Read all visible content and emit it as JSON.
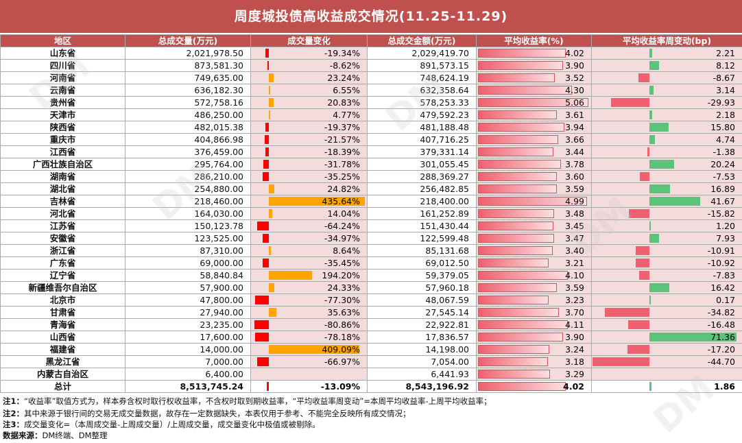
{
  "title": "周度城投债高收益成交情况(11.25-11.29)",
  "headers": [
    "地区",
    "总成交量(万元)",
    "成交量变化",
    "总成交金额(万元)",
    "平均收益率(%)",
    "平均收益率周变动(bp)"
  ],
  "colors": {
    "accent": "#c0504d",
    "volume_up": "#ffa500",
    "volume_down": "#ff0000",
    "yield_bar": "#f0868a",
    "bp_up": "#5cc47a",
    "bp_down": "#f06070",
    "row_bg": "#f5dcdc"
  },
  "rows": [
    {
      "region": "山东省",
      "volume": "2,021,978.50",
      "change": "-19.34%",
      "change_val": -19.34,
      "amount": "2,029,419.70",
      "yield": "4.02",
      "yield_val": 4.02,
      "bp": "2.21",
      "bp_val": 2.21
    },
    {
      "region": "四川省",
      "volume": "873,581.30",
      "change": "-8.62%",
      "change_val": -8.62,
      "amount": "891,573.15",
      "yield": "3.90",
      "yield_val": 3.9,
      "bp": "8.12",
      "bp_val": 8.12
    },
    {
      "region": "河南省",
      "volume": "749,635.00",
      "change": "23.24%",
      "change_val": 23.24,
      "amount": "748,624.19",
      "yield": "3.52",
      "yield_val": 3.52,
      "bp": "-8.67",
      "bp_val": -8.67
    },
    {
      "region": "云南省",
      "volume": "636,182.30",
      "change": "6.55%",
      "change_val": 6.55,
      "amount": "632,358.64",
      "yield": "4.30",
      "yield_val": 4.3,
      "bp": "3.14",
      "bp_val": 3.14
    },
    {
      "region": "贵州省",
      "volume": "572,758.16",
      "change": "20.83%",
      "change_val": 20.83,
      "amount": "578,253.33",
      "yield": "5.06",
      "yield_val": 5.06,
      "bp": "-29.93",
      "bp_val": -29.93
    },
    {
      "region": "天津市",
      "volume": "486,250.00",
      "change": "4.77%",
      "change_val": 4.77,
      "amount": "479,592.23",
      "yield": "3.61",
      "yield_val": 3.61,
      "bp": "2.18",
      "bp_val": 2.18
    },
    {
      "region": "陕西省",
      "volume": "482,015.38",
      "change": "-19.37%",
      "change_val": -19.37,
      "amount": "481,188.48",
      "yield": "3.94",
      "yield_val": 3.94,
      "bp": "15.80",
      "bp_val": 15.8
    },
    {
      "region": "重庆市",
      "volume": "404,866.98",
      "change": "-21.57%",
      "change_val": -21.57,
      "amount": "407,716.25",
      "yield": "3.66",
      "yield_val": 3.66,
      "bp": "4.74",
      "bp_val": 4.74
    },
    {
      "region": "江西省",
      "volume": "376,459.00",
      "change": "-18.39%",
      "change_val": -18.39,
      "amount": "379,331.14",
      "yield": "3.44",
      "yield_val": 3.44,
      "bp": "-1.38",
      "bp_val": -1.38
    },
    {
      "region": "广西壮族自治区",
      "volume": "295,764.00",
      "change": "-31.78%",
      "change_val": -31.78,
      "amount": "301,055.45",
      "yield": "3.78",
      "yield_val": 3.78,
      "bp": "20.24",
      "bp_val": 20.24
    },
    {
      "region": "湖南省",
      "volume": "286,210.00",
      "change": "-35.25%",
      "change_val": -35.25,
      "amount": "288,369.27",
      "yield": "3.60",
      "yield_val": 3.6,
      "bp": "-7.53",
      "bp_val": -7.53
    },
    {
      "region": "湖北省",
      "volume": "254,880.00",
      "change": "24.82%",
      "change_val": 24.82,
      "amount": "256,482.85",
      "yield": "3.59",
      "yield_val": 3.59,
      "bp": "16.89",
      "bp_val": 16.89
    },
    {
      "region": "吉林省",
      "volume": "218,460.00",
      "change": "435.64%",
      "change_val": 435.64,
      "amount": "218,400.00",
      "yield": "4.99",
      "yield_val": 4.99,
      "bp": "41.67",
      "bp_val": 41.67
    },
    {
      "region": "河北省",
      "volume": "164,030.00",
      "change": "14.04%",
      "change_val": 14.04,
      "amount": "161,252.89",
      "yield": "3.48",
      "yield_val": 3.48,
      "bp": "-15.82",
      "bp_val": -15.82
    },
    {
      "region": "江苏省",
      "volume": "150,123.78",
      "change": "-64.24%",
      "change_val": -64.24,
      "amount": "151,430.44",
      "yield": "3.45",
      "yield_val": 3.45,
      "bp": "1.20",
      "bp_val": 1.2
    },
    {
      "region": "安徽省",
      "volume": "123,525.00",
      "change": "-34.97%",
      "change_val": -34.97,
      "amount": "122,599.48",
      "yield": "3.47",
      "yield_val": 3.47,
      "bp": "7.93",
      "bp_val": 7.93
    },
    {
      "region": "浙江省",
      "volume": "87,310.00",
      "change": "8.64%",
      "change_val": 8.64,
      "amount": "85,131.68",
      "yield": "3.40",
      "yield_val": 3.4,
      "bp": "-10.91",
      "bp_val": -10.91
    },
    {
      "region": "广东省",
      "volume": "69,000.00",
      "change": "-35.45%",
      "change_val": -35.45,
      "amount": "69,012.50",
      "yield": "3.21",
      "yield_val": 3.21,
      "bp": "-10.92",
      "bp_val": -10.92
    },
    {
      "region": "辽宁省",
      "volume": "58,840.84",
      "change": "194.20%",
      "change_val": 194.2,
      "amount": "59,379.05",
      "yield": "4.10",
      "yield_val": 4.1,
      "bp": "-7.83",
      "bp_val": -7.83
    },
    {
      "region": "新疆维吾尔自治区",
      "volume": "57,900.00",
      "change": "24.33%",
      "change_val": 24.33,
      "amount": "57,960.18",
      "yield": "3.59",
      "yield_val": 3.59,
      "bp": "16.42",
      "bp_val": 16.42
    },
    {
      "region": "北京市",
      "volume": "47,800.00",
      "change": "-77.30%",
      "change_val": -77.3,
      "amount": "48,067.59",
      "yield": "3.23",
      "yield_val": 3.23,
      "bp": "0.17",
      "bp_val": 0.17
    },
    {
      "region": "甘肃省",
      "volume": "27,940.00",
      "change": "35.63%",
      "change_val": 35.63,
      "amount": "27,545.14",
      "yield": "3.70",
      "yield_val": 3.7,
      "bp": "-34.82",
      "bp_val": -34.82
    },
    {
      "region": "青海省",
      "volume": "23,235.00",
      "change": "-80.86%",
      "change_val": -80.86,
      "amount": "22,922.81",
      "yield": "4.11",
      "yield_val": 4.11,
      "bp": "-16.48",
      "bp_val": -16.48
    },
    {
      "region": "山西省",
      "volume": "17,600.00",
      "change": "-78.18%",
      "change_val": -78.18,
      "amount": "17,836.57",
      "yield": "3.90",
      "yield_val": 3.9,
      "bp": "71.36",
      "bp_val": 71.36
    },
    {
      "region": "福建省",
      "volume": "14,000.00",
      "change": "409.09%",
      "change_val": 409.09,
      "amount": "14,198.00",
      "yield": "3.24",
      "yield_val": 3.24,
      "bp": "-17.20",
      "bp_val": -17.2
    },
    {
      "region": "黑龙江省",
      "volume": "7,000.00",
      "change": "-66.97%",
      "change_val": -66.97,
      "amount": "7,054.00",
      "yield": "3.18",
      "yield_val": 3.18,
      "bp": "-44.70",
      "bp_val": -44.7
    },
    {
      "region": "内蒙古自治区",
      "volume": "6,400.00",
      "change": "",
      "change_val": null,
      "amount": "6,441.93",
      "yield": "3.29",
      "yield_val": 3.29,
      "bp": "",
      "bp_val": null
    }
  ],
  "total": {
    "region": "总计",
    "volume": "8,513,745.24",
    "change": "-13.09%",
    "change_val": -13.09,
    "amount": "8,543,196.92",
    "yield": "4.02",
    "yield_val": 4.02,
    "bp": "1.86",
    "bp_val": 1.86
  },
  "notes": [
    {
      "label": "注1：",
      "text": "“收益率”取值方式为，样本券含权时取行权收益率，不含权时取到期收益率，“平均收益率周变动”=本周平均收益率-上周平均收益率；"
    },
    {
      "label": "注2：",
      "text": "其中来源于银行间的交易无成交量数据，故存在一定数据缺失，本表仅用于参考、不能完全反映所有成交情况；"
    },
    {
      "label": "注3：",
      "text": "成交量变化=（本周成交量-上周成交量）/上周成交量，成交量变化中极值或被剔除。"
    },
    {
      "label": "数据来源：",
      "text": "DM终端、DM整理"
    }
  ],
  "watermark": "DM"
}
